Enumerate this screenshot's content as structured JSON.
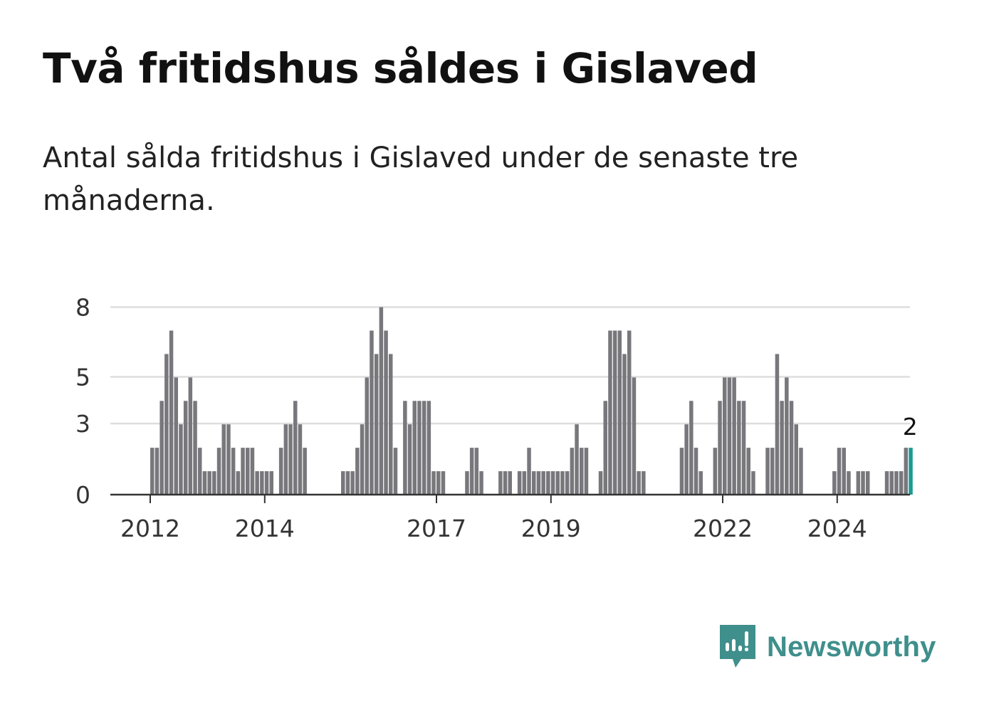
{
  "title": "Två fritidshus såldes i Gislaved",
  "subtitle": "Antal sålda fritidshus i Gislaved under de senaste tre månaderna.",
  "brand": {
    "name": "Newsworthy",
    "color": "#3f8f8c",
    "icon": "newsworthy-logo-icon"
  },
  "colors": {
    "bar": "#78777c",
    "highlight": "#1a9a92",
    "grid": "#dddddd",
    "axis": "#333333"
  },
  "chart_data": {
    "type": "bar",
    "ylim": [
      0,
      8.8
    ],
    "yticks": [
      0,
      3,
      5,
      8
    ],
    "ytick_labels": [
      "0",
      "3",
      "5",
      "8"
    ],
    "xticks": [
      {
        "label": "2012",
        "index": 0
      },
      {
        "label": "2014",
        "index": 24
      },
      {
        "label": "2017",
        "index": 60
      },
      {
        "label": "2019",
        "index": 84
      },
      {
        "label": "2022",
        "index": 120
      },
      {
        "label": "2024",
        "index": 144
      }
    ],
    "start_index": -8,
    "highlight_label": "2",
    "values": [
      0,
      0,
      0,
      0,
      0,
      0,
      0,
      0,
      2,
      2,
      4,
      6,
      7,
      5,
      3,
      4,
      5,
      4,
      2,
      1,
      1,
      1,
      2,
      3,
      3,
      2,
      1,
      2,
      2,
      2,
      1,
      1,
      1,
      1,
      0,
      2,
      3,
      3,
      4,
      3,
      2,
      0,
      0,
      0,
      0,
      0,
      0,
      0,
      1,
      1,
      1,
      2,
      3,
      5,
      7,
      6,
      8,
      7,
      6,
      2,
      0,
      4,
      3,
      4,
      4,
      4,
      4,
      1,
      1,
      1,
      0,
      0,
      0,
      0,
      1,
      2,
      2,
      1,
      0,
      0,
      0,
      1,
      1,
      1,
      0,
      1,
      1,
      2,
      1,
      1,
      1,
      1,
      1,
      1,
      1,
      1,
      2,
      3,
      2,
      2,
      0,
      0,
      1,
      4,
      7,
      7,
      7,
      6,
      7,
      5,
      1,
      1,
      0,
      0,
      0,
      0,
      0,
      0,
      0,
      2,
      3,
      4,
      2,
      1,
      0,
      0,
      2,
      4,
      5,
      5,
      5,
      4,
      4,
      2,
      1,
      0,
      0,
      2,
      2,
      6,
      4,
      5,
      4,
      3,
      2,
      0,
      0,
      0,
      0,
      0,
      0,
      1,
      2,
      2,
      1,
      0,
      1,
      1,
      1,
      0,
      0,
      0,
      1,
      1,
      1,
      1,
      2,
      2
    ]
  }
}
